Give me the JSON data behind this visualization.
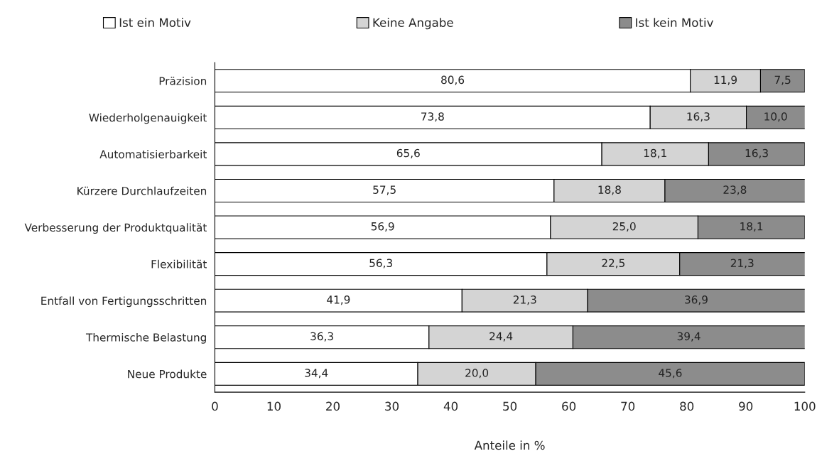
{
  "chart_data": {
    "type": "bar",
    "orientation": "horizontal",
    "stacked": true,
    "legend": "top",
    "grid": false,
    "xlabel": "Anteile in %",
    "categories": [
      "Präzision",
      "Wiederholgenauigkeit",
      "Automatisierbarkeit",
      "Kürzere Durchlaufzeiten",
      "Verbesserung der Produktqualität",
      "Flexibilität",
      "Entfall von Fertigungsschritten",
      "Thermische Belastung",
      "Neue Produkte"
    ],
    "series": [
      {
        "name": "Ist ein Motiv",
        "color": "#ffffff",
        "values": [
          80.6,
          73.8,
          65.6,
          57.5,
          56.9,
          56.3,
          41.9,
          36.3,
          34.4
        ],
        "value_labels": [
          "80,6",
          "73,8",
          "65,6",
          "57,5",
          "56,9",
          "56,3",
          "41,9",
          "36,3",
          "34,4"
        ]
      },
      {
        "name": "Keine Angabe",
        "color": "#d4d4d4",
        "values": [
          11.9,
          16.3,
          18.1,
          18.8,
          25.0,
          22.5,
          21.3,
          24.4,
          20.0
        ],
        "value_labels": [
          "11,9",
          "16,3",
          "18,1",
          "18,8",
          "25,0",
          "22,5",
          "21,3",
          "24,4",
          "20,0"
        ]
      },
      {
        "name": "Ist kein Motiv",
        "color": "#8c8c8c",
        "values": [
          7.5,
          10.0,
          16.3,
          23.8,
          18.1,
          21.3,
          36.9,
          39.4,
          45.6
        ],
        "value_labels": [
          "7,5",
          "10,0",
          "16,3",
          "23,8",
          "18,1",
          "21,3",
          "36,9",
          "39,4",
          "45,6"
        ]
      }
    ],
    "xlim": [
      0,
      100
    ],
    "xticks": [
      0,
      10,
      20,
      30,
      40,
      50,
      60,
      70,
      80,
      90,
      100
    ]
  }
}
